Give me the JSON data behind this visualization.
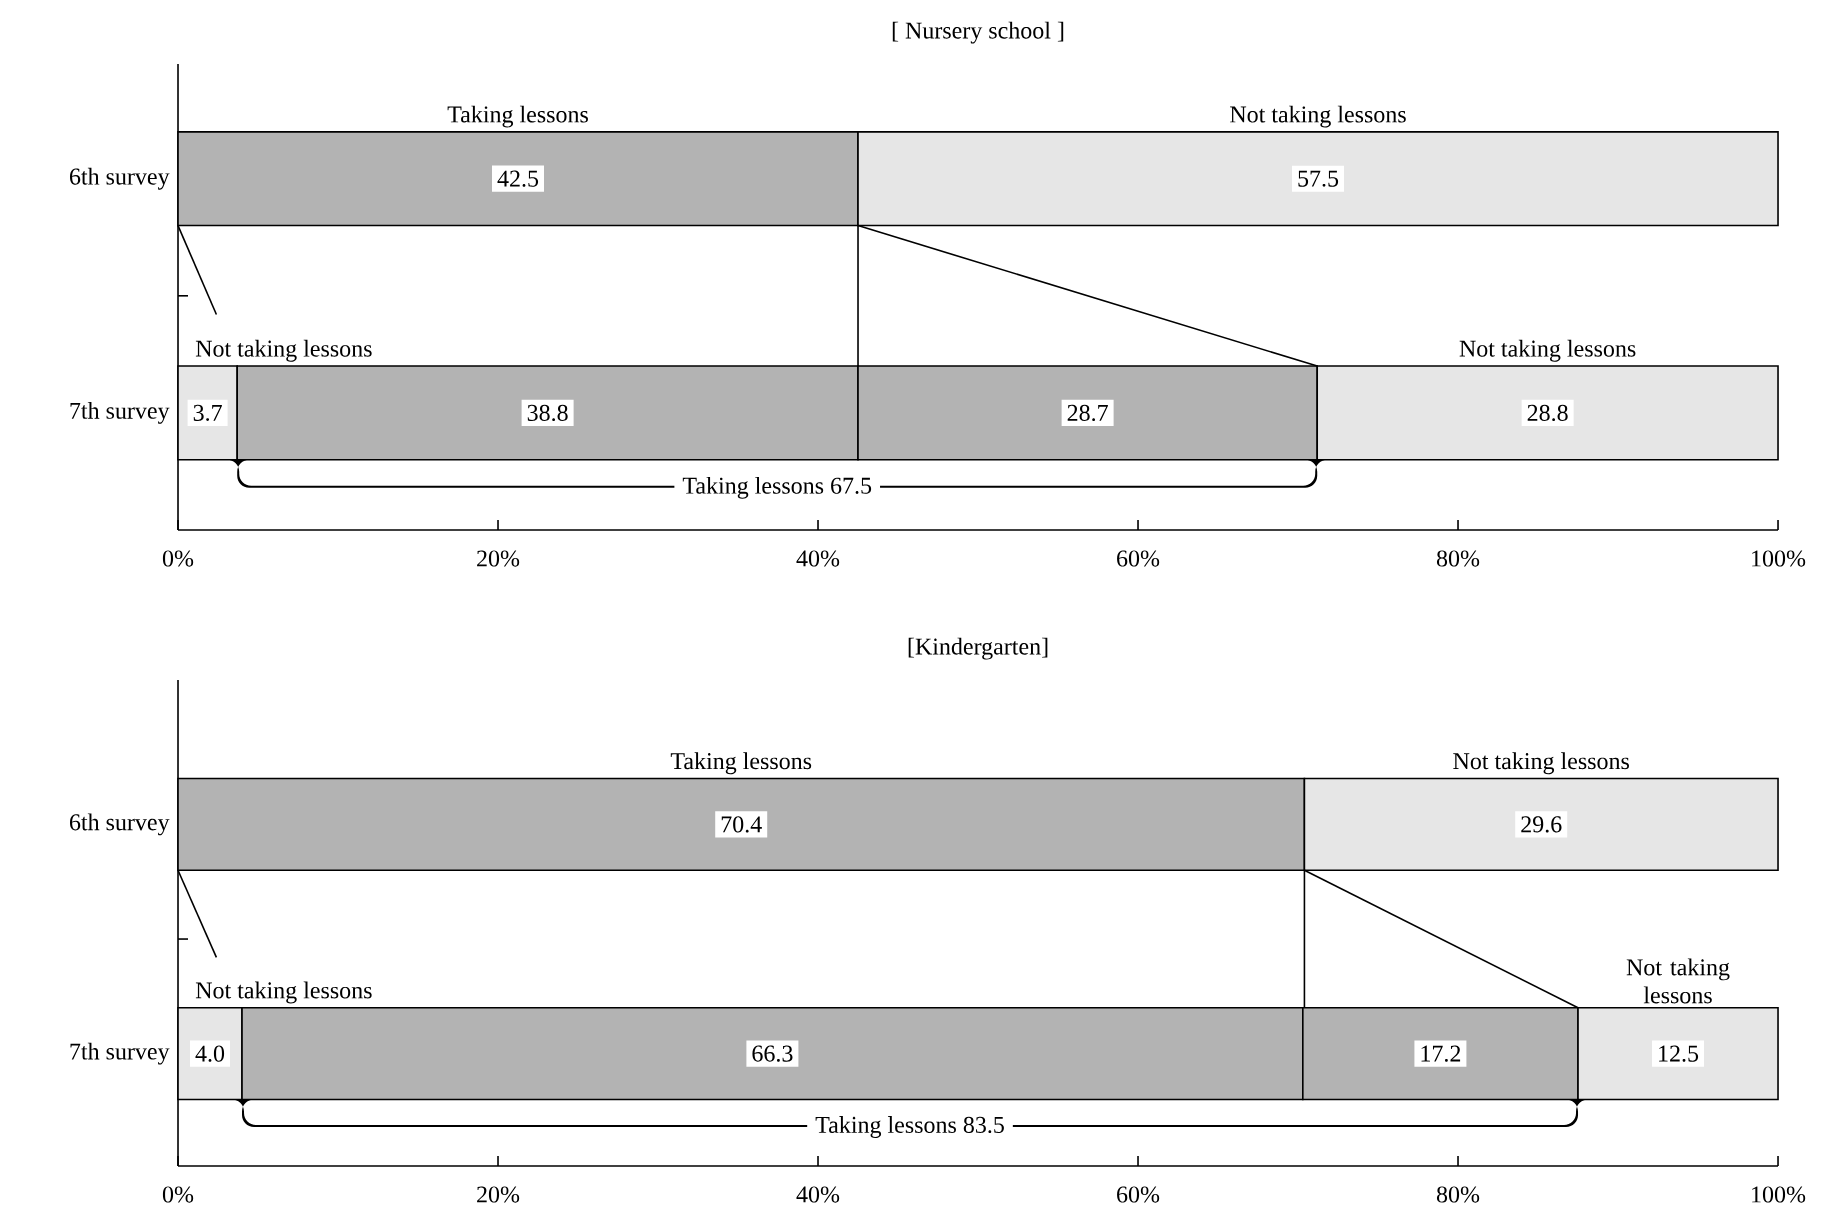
{
  "chart_data": [
    {
      "type": "bar",
      "orientation": "horizontal",
      "stacked": true,
      "title": "[ Nursery school ]",
      "categories": [
        "6th survey",
        "7th survey"
      ],
      "series": [
        {
          "values": [
            42.5,
            3.7
          ],
          "value_labels": [
            "42.5",
            "3.7"
          ],
          "colors": [
            "#b3b3b3",
            "#e6e6e6"
          ]
        },
        {
          "values": [
            57.5,
            38.8
          ],
          "value_labels": [
            "57.5",
            "38.8"
          ],
          "colors": [
            "#e6e6e6",
            "#b3b3b3"
          ]
        },
        {
          "values": [
            null,
            28.7
          ],
          "value_labels": [
            null,
            "28.7"
          ],
          "colors": [
            null,
            "#b3b3b3"
          ]
        },
        {
          "values": [
            null,
            28.8
          ],
          "value_labels": [
            null,
            "28.8"
          ],
          "colors": [
            null,
            "#e6e6e6"
          ]
        }
      ],
      "xlim": [
        0,
        100
      ],
      "xticks": [
        {
          "value": 0,
          "label": "0%"
        },
        {
          "value": 20,
          "label": "20%"
        },
        {
          "value": 40,
          "label": "40%"
        },
        {
          "value": 60,
          "label": "60%"
        },
        {
          "value": 80,
          "label": "80%"
        },
        {
          "value": 100,
          "label": "100%"
        }
      ],
      "annotations": [
        "Taking lessons",
        "Not taking lessons",
        {
          "text": "Not taking lessons",
          "x": 0,
          "y": "7th survey"
        },
        "Not taking lessons",
        "Taking lessons   67.5"
      ]
    },
    {
      "type": "bar",
      "orientation": "horizontal",
      "stacked": true,
      "title": "[Kindergarten]",
      "categories": [
        "6th survey",
        "7th survey"
      ],
      "series": [
        {
          "values": [
            70.4,
            4.0
          ],
          "value_labels": [
            "70.4",
            "4.0"
          ],
          "colors": [
            "#b3b3b3",
            "#e6e6e6"
          ]
        },
        {
          "values": [
            29.6,
            66.3
          ],
          "value_labels": [
            "29.6",
            "66.3"
          ],
          "colors": [
            "#e6e6e6",
            "#b3b3b3"
          ]
        },
        {
          "values": [
            null,
            17.2
          ],
          "value_labels": [
            null,
            "17.2"
          ],
          "colors": [
            null,
            "#b3b3b3"
          ]
        },
        {
          "values": [
            null,
            12.5
          ],
          "value_labels": [
            null,
            "12.5"
          ],
          "colors": [
            null,
            "#e6e6e6"
          ]
        }
      ],
      "xlim": [
        0,
        100
      ],
      "xticks": [
        {
          "value": 0,
          "label": "0%"
        },
        {
          "value": 20,
          "label": "20%"
        },
        {
          "value": 40,
          "label": "40%"
        },
        {
          "value": 60,
          "label": "60%"
        },
        {
          "value": 80,
          "label": "80%"
        },
        {
          "value": 100,
          "label": "100%"
        }
      ],
      "annotations": [
        "Taking lessons",
        "Not taking lessons",
        {
          "text": "Not taking lessons",
          "x": 0,
          "y": "7th survey"
        },
        "Not taking lessons",
        "Taking lessons   83.5"
      ]
    }
  ]
}
